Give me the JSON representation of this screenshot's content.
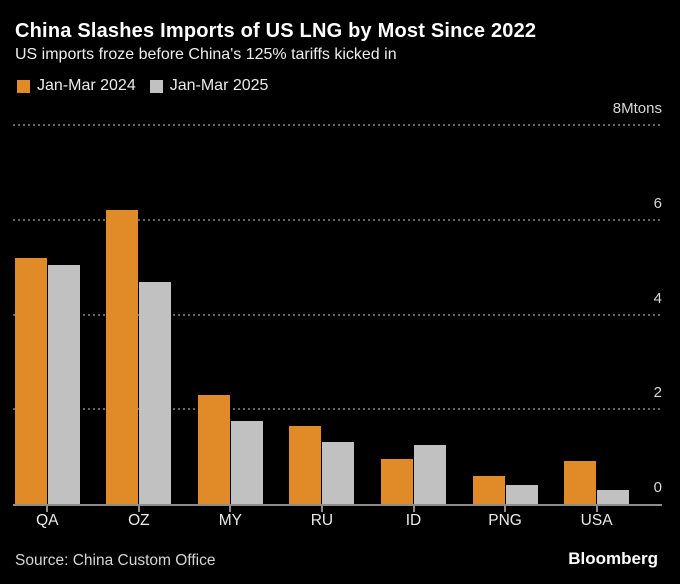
{
  "header": {
    "title": "China Slashes Imports of US LNG by Most Since 2022",
    "subtitle": "US imports froze before China's 125% tariffs kicked in"
  },
  "legend": [
    {
      "label": "Jan-Mar 2024",
      "color": "#E08B28"
    },
    {
      "label": "Jan-Mar 2025",
      "color": "#C1C1C1"
    }
  ],
  "chart_data": {
    "type": "bar",
    "title": "China Slashes Imports of US LNG by Most Since 2022",
    "subtitle": "US imports froze before China's 125% tariffs kicked in",
    "categories": [
      "QA",
      "OZ",
      "MY",
      "RU",
      "ID",
      "PNG",
      "USA"
    ],
    "series": [
      {
        "name": "Jan-Mar 2024",
        "color": "#E08B28",
        "values": [
          5.2,
          6.2,
          2.3,
          1.65,
          0.95,
          0.6,
          0.9
        ]
      },
      {
        "name": "Jan-Mar 2025",
        "color": "#C1C1C1",
        "values": [
          5.05,
          4.7,
          1.75,
          1.3,
          1.25,
          0.4,
          0.3
        ]
      }
    ],
    "xlabel": "",
    "ylabel": "Mtons",
    "ylim": [
      0,
      8
    ],
    "yticks": [
      0,
      2,
      4,
      6,
      8
    ],
    "ytick_labels": [
      "0",
      "2",
      "4",
      "6",
      "8Mtons"
    ],
    "grid": "horizontal-dotted",
    "legend_position": "top-left",
    "colors": {
      "background": "#000000",
      "gridline": "#666666",
      "axis_line": "#8D8D8D",
      "axis_text": "#D9D9D9"
    }
  },
  "footer": {
    "source": "Source: China Custom Office",
    "brand": "Bloomberg"
  }
}
